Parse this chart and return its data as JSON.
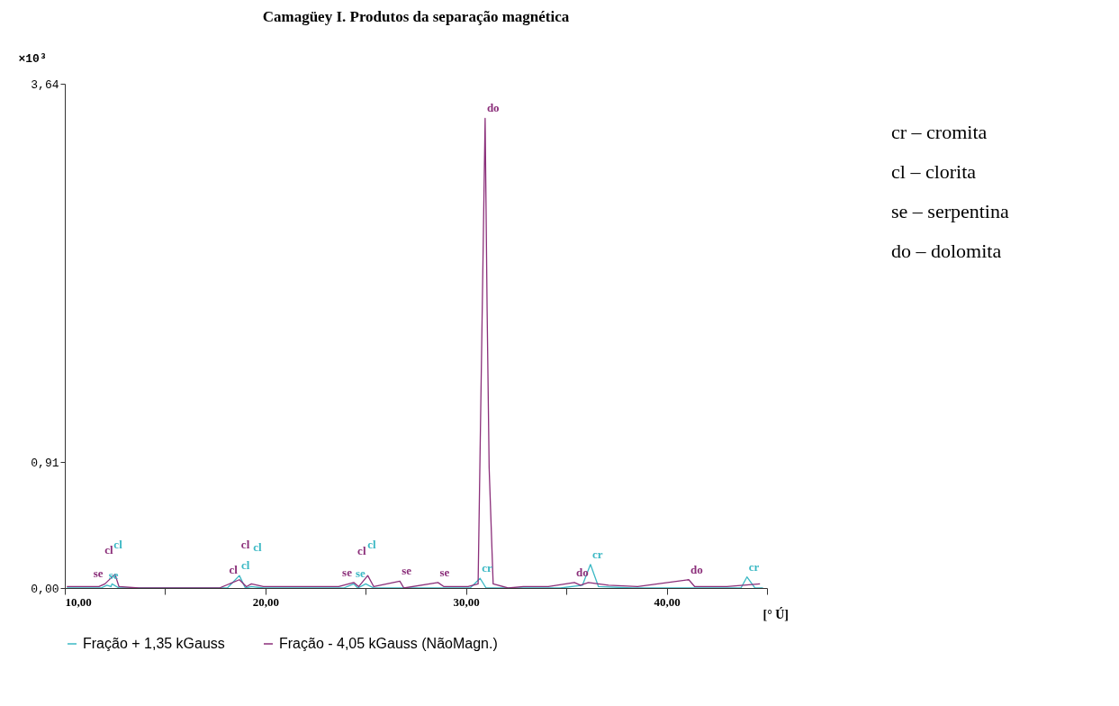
{
  "chart_data": {
    "type": "line",
    "title": "Camagüey I. Produtos da separação magnética",
    "xlabel": "[° Ú]",
    "ylabel": "×10³",
    "xlim": [
      10,
      45
    ],
    "xticks": [
      {
        "value": 10,
        "label": "10,00"
      },
      {
        "value": 15,
        "label": null
      },
      {
        "value": 20,
        "label": "20,00"
      },
      {
        "value": 25,
        "label": null
      },
      {
        "value": 30,
        "label": "30,00"
      },
      {
        "value": 35,
        "label": null
      },
      {
        "value": 40,
        "label": "40,00"
      },
      {
        "value": 45,
        "label": null
      }
    ],
    "ylim": [
      0,
      3.64
    ],
    "yticks": [
      {
        "value": 0,
        "label": "0,00"
      },
      {
        "value": 0.91,
        "label": "0,91"
      },
      {
        "value": 3.64,
        "label": "3,64"
      }
    ],
    "grid": false,
    "legend": "bottom left",
    "marker": "none",
    "line_style": "solid",
    "series": [
      {
        "name": "Fração + 1,35 kGauss",
        "color": "#3bb8c4",
        "x": [
          10.1,
          11.8,
          12.1,
          12.3,
          12.35,
          12.7,
          18.1,
          18.7,
          19.0,
          19.3,
          19.9,
          23.9,
          24.4,
          24.6,
          25.0,
          25.4,
          30.2,
          30.7,
          31.0,
          34.7,
          35.8,
          36.2,
          36.6,
          38.3,
          42.8,
          43.7,
          44.0,
          44.4,
          44.8
        ],
        "values": [
          0,
          0,
          0.02,
          0.01,
          0.03,
          0,
          0,
          0.09,
          0,
          0.01,
          0,
          0,
          0.03,
          0,
          0.03,
          0,
          0,
          0.07,
          0,
          0,
          0.02,
          0.17,
          0.01,
          0,
          0,
          0,
          0.08,
          0,
          0
        ]
      },
      {
        "name": "Fração  - 4,05 kGauss (NãoMagn.)",
        "color": "#8b2f7a",
        "x": [
          10.1,
          11.7,
          12.0,
          12.5,
          12.7,
          13.7,
          17.7,
          18.7,
          19.05,
          19.3,
          19.9,
          23.65,
          24.4,
          24.65,
          25.1,
          25.4,
          26.7,
          26.9,
          28.6,
          28.9,
          30.1,
          30.6,
          30.95,
          31.05,
          31.15,
          31.35,
          32.1,
          32.85,
          34.1,
          35.4,
          35.7,
          36.1,
          37.1,
          38.55,
          41.1,
          41.4,
          43.0,
          44.65
        ],
        "values": [
          0.01,
          0.01,
          0.03,
          0.1,
          0.01,
          0,
          0,
          0.06,
          0.01,
          0.03,
          0.01,
          0.01,
          0.04,
          0.01,
          0.09,
          0.01,
          0.05,
          0,
          0.04,
          0.01,
          0.01,
          0.03,
          3.39,
          2.0,
          0.87,
          0.03,
          0,
          0.01,
          0.01,
          0.04,
          0.02,
          0.04,
          0.02,
          0.01,
          0.06,
          0.01,
          0.01,
          0.03
        ]
      }
    ],
    "annotations": [
      {
        "text": "se",
        "x": 12.1,
        "y": 0.02
      },
      {
        "text": "cl",
        "x": 12.35,
        "y": 0.03
      },
      {
        "text": "cl",
        "x": 18.7,
        "y": 0.09
      },
      {
        "text": "cl",
        "x": 19.3,
        "y": 0.01
      },
      {
        "text": "se",
        "x": 24.4,
        "y": 0.03
      },
      {
        "text": "cl",
        "x": 25.0,
        "y": 0.03
      },
      {
        "text": "cr",
        "x": 30.7,
        "y": 0.07
      },
      {
        "text": "cr",
        "x": 36.2,
        "y": 0.17
      },
      {
        "text": "cr",
        "x": 44.0,
        "y": 0.08
      },
      {
        "text": "se",
        "x": 12.0,
        "y": 0.03
      },
      {
        "text": "cl",
        "x": 12.5,
        "y": 0.1
      },
      {
        "text": "cl",
        "x": 18.7,
        "y": 0.06
      },
      {
        "text": "cl",
        "x": 19.3,
        "y": 0.03
      },
      {
        "text": "se",
        "x": 24.4,
        "y": 0.04
      },
      {
        "text": "cl",
        "x": 25.1,
        "y": 0.09
      },
      {
        "text": "se",
        "x": 26.7,
        "y": 0.05
      },
      {
        "text": "se",
        "x": 28.6,
        "y": 0.04
      },
      {
        "text": "do",
        "x": 30.95,
        "y": 3.39
      },
      {
        "text": "do",
        "x": 35.4,
        "y": 0.04
      },
      {
        "text": "do",
        "x": 41.1,
        "y": 0.06
      },
      "cr – cromita",
      "cl – clorita",
      "se – serpentina",
      "do – dolomita"
    ]
  }
}
